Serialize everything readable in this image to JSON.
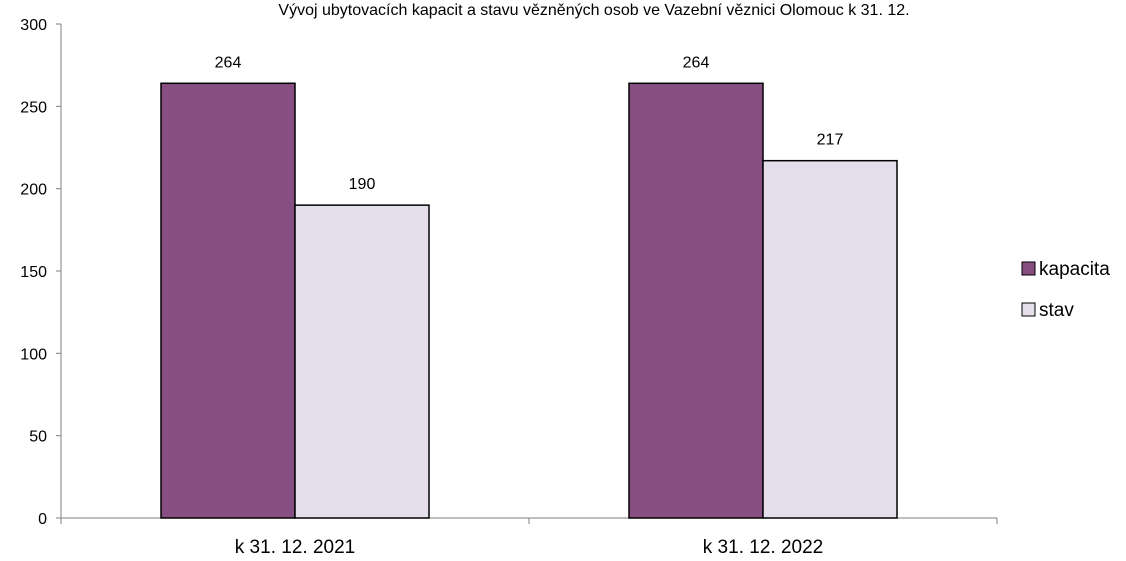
{
  "chart_data": {
    "type": "bar",
    "title": "Vývoj ubytovacích kapacit a stavu vězněných osob ve Vazební věznici Olomouc k 31. 12.",
    "categories": [
      "k 31. 12. 2021",
      "k 31. 12. 2022"
    ],
    "series": [
      {
        "name": "kapacita",
        "values": [
          264,
          264
        ],
        "color": "#874F81"
      },
      {
        "name": "stav",
        "values": [
          190,
          217
        ],
        "color": "#E5DFEC"
      }
    ],
    "ylim": [
      0,
      300
    ],
    "yticks": [
      0,
      50,
      100,
      150,
      200,
      250,
      300
    ],
    "grid": false,
    "legend_position": "right",
    "data_labels": true
  }
}
